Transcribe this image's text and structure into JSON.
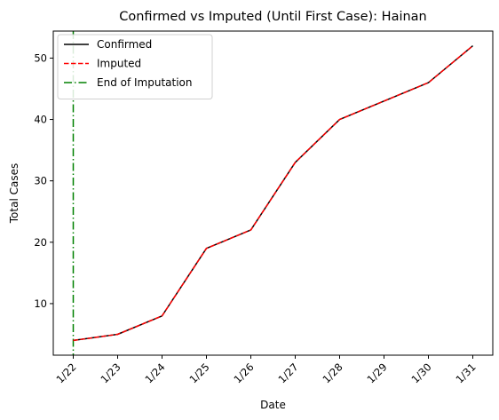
{
  "chart_data": {
    "type": "line",
    "title": "Confirmed vs Imputed (Until First Case): Hainan",
    "xlabel": "Date",
    "ylabel": "Total Cases",
    "categories": [
      "1/22",
      "1/23",
      "1/24",
      "1/25",
      "1/26",
      "1/27",
      "1/28",
      "1/29",
      "1/30",
      "1/31"
    ],
    "series": [
      {
        "name": "Confirmed",
        "values": [
          4,
          5,
          8,
          19,
          22,
          33,
          40,
          43,
          46,
          52
        ],
        "color": "#000000",
        "style": "solid"
      },
      {
        "name": "Imputed",
        "values": [
          4,
          5,
          8,
          19,
          22,
          33,
          40,
          43,
          46,
          52
        ],
        "color": "#ff0000",
        "style": "dashed"
      }
    ],
    "vline": {
      "name": "End of Imputation",
      "x": "1/22",
      "color": "#008000",
      "style": "dashdot"
    },
    "yticks": [
      10,
      20,
      30,
      40,
      50
    ],
    "ylim": [
      1.6,
      54.4
    ],
    "xlim_padding": 0.45,
    "legend_position": "upper-left",
    "grid": false
  }
}
